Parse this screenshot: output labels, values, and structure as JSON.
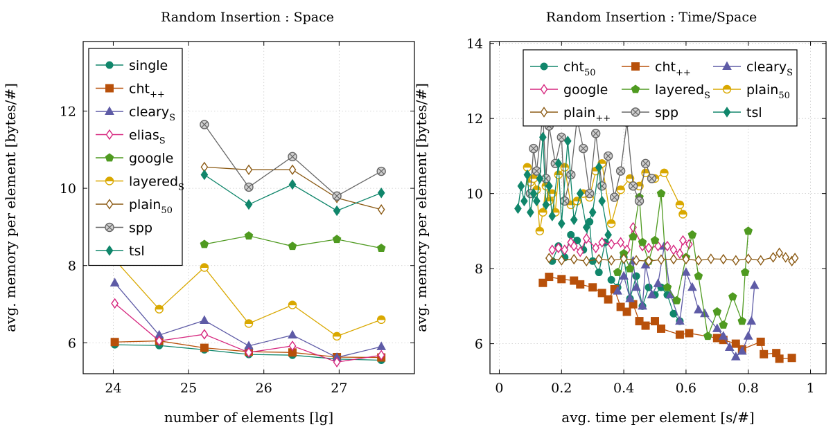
{
  "chart_data": [
    {
      "type": "line",
      "title": "Random Insertion : Space",
      "xlabel": "number of elements [lg]",
      "ylabel": "avg. memory per element [bytes/#]",
      "xlim": [
        23.6,
        28.0
      ],
      "ylim": [
        5.2,
        13.8
      ],
      "xticks": [
        24,
        25,
        26,
        27
      ],
      "yticks": [
        6,
        8,
        10,
        12
      ],
      "grid": true,
      "legend_position": "top-left",
      "x": [
        24.02,
        24.61,
        25.21,
        25.8,
        26.38,
        26.97,
        27.56
      ],
      "series": [
        {
          "name": "single",
          "sub": "",
          "color": "#10866b",
          "marker": "circle",
          "values": [
            5.95,
            5.93,
            5.82,
            5.7,
            5.68,
            5.58,
            5.55
          ]
        },
        {
          "name": "cht",
          "sub": "++",
          "color": "#b8500a",
          "marker": "square",
          "values": [
            6.02,
            6.05,
            5.87,
            5.77,
            5.75,
            5.63,
            5.62
          ]
        },
        {
          "name": "cleary",
          "sub": "S",
          "color": "#5e5ba6",
          "marker": "triangle",
          "values": [
            7.55,
            6.2,
            6.58,
            5.92,
            6.2,
            5.62,
            5.9
          ]
        },
        {
          "name": "elias",
          "sub": "S",
          "color": "#d6267e",
          "marker": "diamond-open",
          "values": [
            7.02,
            6.05,
            6.22,
            5.75,
            5.92,
            5.5,
            5.68
          ]
        },
        {
          "name": "google",
          "sub": "",
          "color": "#4f9a20",
          "marker": "pentagon",
          "values": [
            null,
            null,
            8.55,
            8.77,
            8.5,
            8.68,
            8.45
          ]
        },
        {
          "name": "layered",
          "sub": "S",
          "color": "#d9a800",
          "marker": "half-circle",
          "values": [
            8.15,
            6.87,
            7.95,
            6.5,
            6.98,
            6.17,
            6.6
          ]
        },
        {
          "name": "plain",
          "sub": "50",
          "color": "#8b5a14",
          "marker": "diamond-open",
          "values": [
            null,
            null,
            10.55,
            10.48,
            10.48,
            9.75,
            9.45
          ]
        },
        {
          "name": "spp",
          "sub": "",
          "color": "#666666",
          "marker": "otimes",
          "values": [
            null,
            null,
            11.65,
            10.03,
            10.82,
            9.8,
            10.44
          ]
        },
        {
          "name": "tsl",
          "sub": "",
          "color": "#10866b",
          "marker": "diamond",
          "values": [
            null,
            null,
            10.35,
            9.58,
            10.1,
            9.42,
            9.88
          ]
        }
      ]
    },
    {
      "type": "line",
      "title": "Random Insertion : Time/Space",
      "xlabel": "avg. time per element [s/#]",
      "ylabel": "avg. memory per element [bytes/#]",
      "xlim": [
        -0.03,
        1.05
      ],
      "ylim": [
        5.2,
        14.05
      ],
      "xticks": [
        0,
        0.2,
        0.4,
        0.6,
        0.8,
        1
      ],
      "yticks": [
        6,
        8,
        10,
        12,
        14
      ],
      "grid": true,
      "legend_position": "top",
      "series": [
        {
          "name": "cht",
          "sub": "50",
          "color": "#10866b",
          "marker": "circle",
          "points": [
            [
              0.17,
              8.2
            ],
            [
              0.19,
              8.6
            ],
            [
              0.21,
              8.3
            ],
            [
              0.23,
              8.9
            ],
            [
              0.25,
              8.75
            ],
            [
              0.27,
              8.5
            ],
            [
              0.29,
              9.25
            ],
            [
              0.3,
              8.2
            ],
            [
              0.32,
              7.9
            ],
            [
              0.34,
              8.7
            ],
            [
              0.36,
              7.7
            ],
            [
              0.38,
              7.5
            ],
            [
              0.4,
              8.3
            ],
            [
              0.42,
              7.2
            ],
            [
              0.44,
              7.8
            ],
            [
              0.46,
              7.0
            ],
            [
              0.48,
              7.5
            ],
            [
              0.5,
              7.3
            ],
            [
              0.52,
              7.5
            ],
            [
              0.54,
              7.3
            ],
            [
              0.56,
              6.8
            ],
            [
              0.58,
              6.6
            ]
          ]
        },
        {
          "name": "cht",
          "sub": "++",
          "color": "#b8500a",
          "marker": "square",
          "points": [
            [
              0.14,
              7.62
            ],
            [
              0.16,
              7.78
            ],
            [
              0.2,
              7.72
            ],
            [
              0.24,
              7.68
            ],
            [
              0.26,
              7.58
            ],
            [
              0.3,
              7.5
            ],
            [
              0.33,
              7.35
            ],
            [
              0.35,
              7.18
            ],
            [
              0.37,
              7.45
            ],
            [
              0.39,
              6.98
            ],
            [
              0.41,
              6.85
            ],
            [
              0.43,
              7.05
            ],
            [
              0.45,
              6.6
            ],
            [
              0.47,
              6.48
            ],
            [
              0.5,
              6.6
            ],
            [
              0.52,
              6.4
            ],
            [
              0.58,
              6.24
            ],
            [
              0.61,
              6.28
            ],
            [
              0.7,
              6.15
            ],
            [
              0.72,
              6.1
            ],
            [
              0.76,
              6.0
            ],
            [
              0.78,
              5.85
            ],
            [
              0.84,
              6.05
            ],
            [
              0.85,
              5.72
            ],
            [
              0.89,
              5.75
            ],
            [
              0.9,
              5.6
            ],
            [
              0.94,
              5.62
            ]
          ]
        },
        {
          "name": "cleary",
          "sub": "S",
          "color": "#5e5ba6",
          "marker": "triangle",
          "points": [
            [
              0.38,
              7.4
            ],
            [
              0.4,
              7.8
            ],
            [
              0.42,
              7.2
            ],
            [
              0.43,
              8.2
            ],
            [
              0.44,
              7.5
            ],
            [
              0.46,
              7.0
            ],
            [
              0.47,
              8.1
            ],
            [
              0.49,
              7.3
            ],
            [
              0.51,
              7.6
            ],
            [
              0.53,
              8.6
            ],
            [
              0.55,
              7.3
            ],
            [
              0.58,
              6.6
            ],
            [
              0.6,
              7.9
            ],
            [
              0.62,
              7.5
            ],
            [
              0.64,
              6.9
            ],
            [
              0.66,
              6.8
            ],
            [
              0.7,
              6.4
            ],
            [
              0.72,
              6.2
            ],
            [
              0.74,
              5.9
            ],
            [
              0.76,
              5.65
            ],
            [
              0.78,
              5.8
            ],
            [
              0.8,
              6.2
            ],
            [
              0.81,
              6.6
            ],
            [
              0.82,
              7.55
            ]
          ]
        },
        {
          "name": "google",
          "sub": "",
          "color": "#d6267e",
          "marker": "diamond-open",
          "points": [
            [
              0.17,
              8.5
            ],
            [
              0.19,
              8.55
            ],
            [
              0.21,
              8.5
            ],
            [
              0.23,
              8.7
            ],
            [
              0.24,
              8.6
            ],
            [
              0.26,
              8.45
            ],
            [
              0.28,
              8.8
            ],
            [
              0.31,
              8.55
            ],
            [
              0.33,
              8.7
            ],
            [
              0.36,
              8.65
            ],
            [
              0.39,
              8.7
            ],
            [
              0.41,
              8.5
            ],
            [
              0.43,
              9.1
            ],
            [
              0.46,
              8.6
            ],
            [
              0.48,
              8.55
            ],
            [
              0.51,
              8.6
            ],
            [
              0.54,
              8.6
            ],
            [
              0.56,
              8.5
            ],
            [
              0.58,
              8.4
            ],
            [
              0.59,
              8.75
            ],
            [
              0.61,
              8.65
            ]
          ]
        },
        {
          "name": "layered",
          "sub": "S",
          "color": "#4f9a20",
          "marker": "pentagon",
          "points": [
            [
              0.38,
              7.9
            ],
            [
              0.4,
              8.4
            ],
            [
              0.42,
              8.0
            ],
            [
              0.43,
              8.85
            ],
            [
              0.45,
              9.9
            ],
            [
              0.46,
              8.7
            ],
            [
              0.48,
              8.2
            ],
            [
              0.5,
              8.75
            ],
            [
              0.52,
              10.0
            ],
            [
              0.54,
              7.5
            ],
            [
              0.57,
              7.15
            ],
            [
              0.6,
              8.3
            ],
            [
              0.62,
              8.9
            ],
            [
              0.64,
              7.8
            ],
            [
              0.67,
              6.2
            ],
            [
              0.7,
              6.85
            ],
            [
              0.72,
              6.5
            ],
            [
              0.75,
              7.25
            ],
            [
              0.78,
              6.6
            ],
            [
              0.79,
              7.9
            ],
            [
              0.8,
              9.0
            ]
          ]
        },
        {
          "name": "plain",
          "sub": "50",
          "color": "#d9a800",
          "marker": "half-circle",
          "points": [
            [
              0.09,
              10.7
            ],
            [
              0.1,
              10.3
            ],
            [
              0.11,
              10.4
            ],
            [
              0.12,
              10.1
            ],
            [
              0.13,
              9.0
            ],
            [
              0.14,
              9.5
            ],
            [
              0.15,
              10.2
            ],
            [
              0.16,
              9.8
            ],
            [
              0.17,
              10.0
            ],
            [
              0.18,
              9.5
            ],
            [
              0.19,
              10.5
            ],
            [
              0.21,
              10.7
            ],
            [
              0.23,
              9.7
            ],
            [
              0.25,
              9.8
            ],
            [
              0.27,
              10.0
            ],
            [
              0.29,
              9.9
            ],
            [
              0.31,
              10.6
            ],
            [
              0.33,
              10.8
            ],
            [
              0.36,
              9.2
            ],
            [
              0.39,
              10.1
            ],
            [
              0.42,
              10.4
            ],
            [
              0.45,
              10.2
            ],
            [
              0.47,
              10.55
            ],
            [
              0.5,
              10.4
            ],
            [
              0.53,
              10.55
            ],
            [
              0.58,
              9.7
            ],
            [
              0.59,
              9.45
            ]
          ]
        },
        {
          "name": "plain",
          "sub": "++",
          "color": "#8b5a14",
          "marker": "diamond-open",
          "points": [
            [
              0.16,
              8.28
            ],
            [
              0.2,
              8.22
            ],
            [
              0.24,
              8.25
            ],
            [
              0.28,
              8.2
            ],
            [
              0.32,
              8.25
            ],
            [
              0.36,
              8.22
            ],
            [
              0.4,
              8.26
            ],
            [
              0.44,
              8.22
            ],
            [
              0.48,
              8.2
            ],
            [
              0.52,
              8.24
            ],
            [
              0.56,
              8.25
            ],
            [
              0.6,
              8.25
            ],
            [
              0.64,
              8.22
            ],
            [
              0.68,
              8.26
            ],
            [
              0.72,
              8.25
            ],
            [
              0.76,
              8.22
            ],
            [
              0.8,
              8.26
            ],
            [
              0.84,
              8.22
            ],
            [
              0.88,
              8.3
            ],
            [
              0.9,
              8.42
            ],
            [
              0.92,
              8.3
            ],
            [
              0.94,
              8.2
            ],
            [
              0.95,
              8.28
            ]
          ]
        },
        {
          "name": "spp",
          "sub": "",
          "color": "#666666",
          "marker": "otimes",
          "points": [
            [
              0.1,
              10.0
            ],
            [
              0.11,
              11.2
            ],
            [
              0.12,
              10.6
            ],
            [
              0.14,
              12.1
            ],
            [
              0.15,
              10.4
            ],
            [
              0.16,
              11.8
            ],
            [
              0.18,
              10.8
            ],
            [
              0.2,
              11.5
            ],
            [
              0.21,
              9.8
            ],
            [
              0.23,
              10.5
            ],
            [
              0.25,
              12.0
            ],
            [
              0.27,
              11.2
            ],
            [
              0.29,
              10.0
            ],
            [
              0.31,
              11.6
            ],
            [
              0.33,
              10.2
            ],
            [
              0.35,
              11.0
            ],
            [
              0.37,
              9.9
            ],
            [
              0.39,
              10.6
            ],
            [
              0.41,
              11.9
            ],
            [
              0.43,
              10.2
            ],
            [
              0.45,
              9.8
            ],
            [
              0.47,
              10.8
            ],
            [
              0.49,
              10.4
            ]
          ]
        },
        {
          "name": "tsl",
          "sub": "",
          "color": "#10866b",
          "marker": "diamond",
          "points": [
            [
              0.06,
              9.6
            ],
            [
              0.07,
              10.2
            ],
            [
              0.08,
              9.8
            ],
            [
              0.09,
              10.5
            ],
            [
              0.1,
              9.5
            ],
            [
              0.11,
              10.0
            ],
            [
              0.12,
              9.8
            ],
            [
              0.13,
              10.4
            ],
            [
              0.14,
              11.5
            ],
            [
              0.15,
              9.7
            ],
            [
              0.16,
              10.2
            ],
            [
              0.17,
              9.4
            ],
            [
              0.19,
              10.8
            ],
            [
              0.2,
              9.2
            ],
            [
              0.22,
              11.4
            ],
            [
              0.24,
              9.3
            ],
            [
              0.26,
              10.0
            ],
            [
              0.28,
              9.1
            ],
            [
              0.3,
              9.5
            ],
            [
              0.32,
              10.7
            ],
            [
              0.33,
              9.8
            ],
            [
              0.35,
              8.9
            ]
          ]
        }
      ]
    }
  ]
}
